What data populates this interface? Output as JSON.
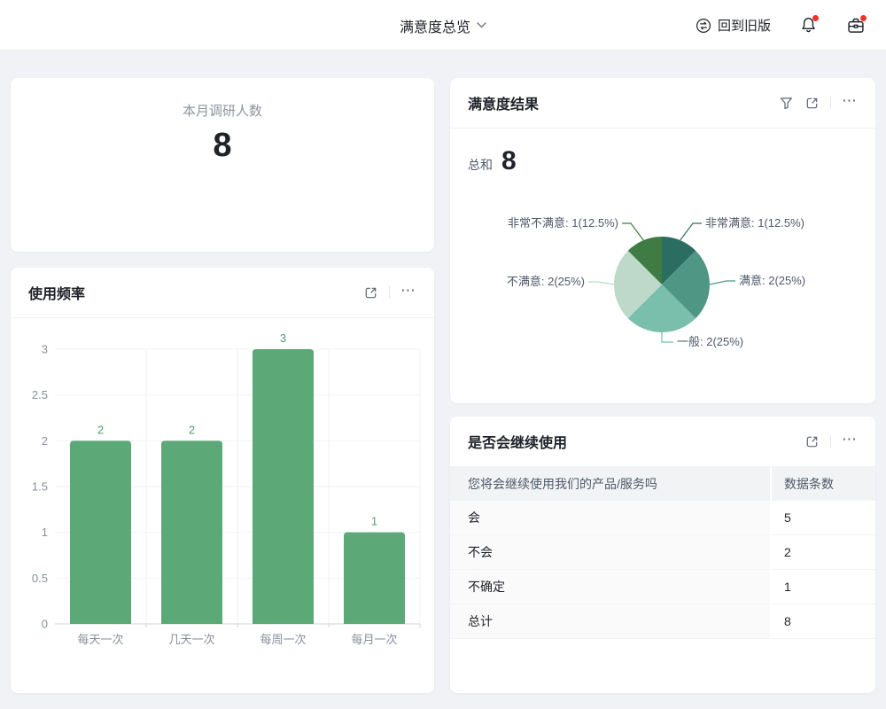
{
  "header": {
    "title": "满意度总览",
    "back_label": "回到旧版"
  },
  "summary_card": {
    "label": "本月调研人数",
    "value": "8"
  },
  "satisfaction_card": {
    "sum_label": "总和",
    "sum_value": "8"
  },
  "colors": {
    "bar": "#5ca877",
    "bar_label": "#4f9f6d",
    "axis_text": "#86909c",
    "axis_line": "#cfd3d8",
    "grid_line": "#f1f2f4",
    "pie_label_text": "#4e5969",
    "badge_red": "#f3322b"
  },
  "chart_data": [
    {
      "type": "bar",
      "title": "使用频率",
      "categories": [
        "每天一次",
        "几天一次",
        "每周一次",
        "每月一次"
      ],
      "values": [
        2,
        2,
        3,
        1
      ],
      "ylim": [
        0,
        3
      ],
      "yticks": [
        0,
        0.5,
        1,
        1.5,
        2,
        2.5,
        3
      ],
      "grid": true,
      "legend_position": "none"
    },
    {
      "type": "pie",
      "title": "满意度结果",
      "total": 8,
      "series": [
        {
          "label": "非常满意",
          "value": 1,
          "percent": "12.5%",
          "color": "#2b6d60"
        },
        {
          "label": "满意",
          "value": 2,
          "percent": "25%",
          "color": "#4f9684"
        },
        {
          "label": "一般",
          "value": 2,
          "percent": "25%",
          "color": "#7abfac"
        },
        {
          "label": "不满意",
          "value": 2,
          "percent": "25%",
          "color": "#bed9ca"
        },
        {
          "label": "非常不满意",
          "value": 1,
          "percent": "12.5%",
          "color": "#3e7c43"
        }
      ],
      "legend_position": "outside-leader-labels"
    },
    {
      "type": "table",
      "title": "是否会继续使用",
      "columns": [
        "您将会继续使用我们的产品/服务吗",
        "数据条数"
      ],
      "rows": [
        [
          "会",
          "5"
        ],
        [
          "不会",
          "2"
        ],
        [
          "不确定",
          "1"
        ],
        [
          "总计",
          "8"
        ]
      ]
    }
  ]
}
